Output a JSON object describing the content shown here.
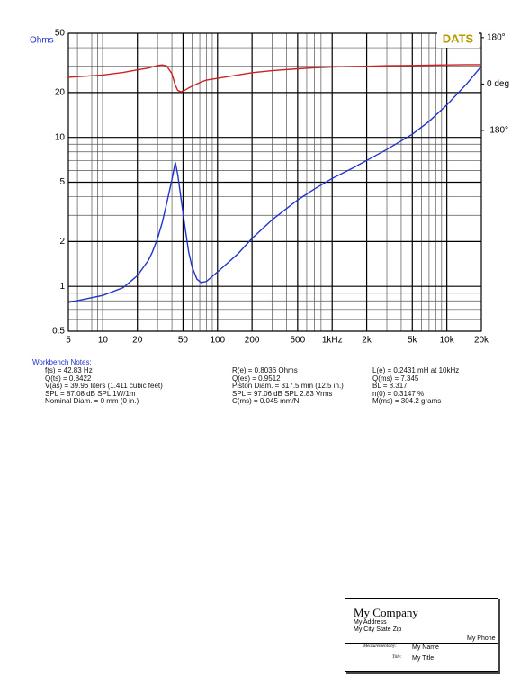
{
  "chart_data": {
    "type": "line",
    "y_label": "Ohms",
    "annotation": "DATS",
    "x": [
      5,
      10,
      15,
      20,
      25,
      27,
      30,
      33,
      36,
      40,
      42.83,
      45,
      48,
      52,
      56,
      60,
      66,
      72,
      80,
      100,
      150,
      200,
      300,
      500,
      700,
      1000,
      1500,
      2000,
      3000,
      5000,
      7000,
      10000,
      15000,
      20000
    ],
    "series": [
      {
        "color": "#2233cc",
        "values": [
          0.78,
          0.87,
          0.98,
          1.18,
          1.5,
          1.7,
          2.1,
          2.7,
          3.6,
          5.2,
          6.8,
          5.6,
          3.9,
          2.5,
          1.7,
          1.35,
          1.12,
          1.06,
          1.08,
          1.25,
          1.65,
          2.1,
          2.8,
          3.8,
          4.5,
          5.3,
          6.2,
          7.0,
          8.3,
          10.5,
          12.8,
          16.5,
          23,
          30
        ]
      },
      {
        "color": "#cc2222",
        "axis": "y2",
        "values": [
          26,
          35,
          45,
          55,
          62,
          66,
          72,
          74,
          70,
          40,
          -5,
          -25,
          -30,
          -24,
          -15,
          -8,
          0,
          8,
          15,
          22,
          35,
          44,
          52,
          59,
          63,
          66,
          68,
          69,
          71,
          72,
          73,
          74,
          75,
          75
        ]
      }
    ],
    "xlog": true,
    "ylog": true,
    "xlim": [
      5,
      20000
    ],
    "ylim": [
      0.5,
      50
    ],
    "y2lim": [
      -959,
      197
    ],
    "xticks": [
      5,
      10,
      20,
      50,
      100,
      200,
      500,
      {
        "value": 1000,
        "label": "1kHz"
      },
      {
        "value": 2000,
        "label": "2k"
      },
      {
        "value": 5000,
        "label": "5k"
      },
      {
        "value": 10000,
        "label": "10k"
      },
      {
        "value": 20000,
        "label": "20k"
      }
    ],
    "yticks": [
      0.5,
      1,
      2,
      5,
      10,
      20,
      50
    ],
    "y2ticks": [
      {
        "value": 180,
        "label": "180°"
      },
      {
        "value": 0,
        "label": "0 deg"
      },
      {
        "value": -180,
        "label": "-180°"
      }
    ],
    "x_minor_grid": [
      6,
      7,
      8,
      9,
      30,
      40,
      60,
      70,
      80,
      90,
      300,
      400,
      600,
      700,
      800,
      900,
      3000,
      4000,
      6000,
      7000,
      8000,
      9000
    ],
    "y_minor_grid": [
      0.6,
      0.7,
      0.8,
      0.9,
      3,
      4,
      6,
      7,
      8,
      9,
      30,
      40
    ],
    "grid": true
  },
  "notes": {
    "title": "Workbench Notes:",
    "columns": [
      [
        "f(s) = 42.83 Hz",
        "Q(ts) = 0.8422",
        "V(as) = 39.96 liters  (1.411 cubic feet)",
        "SPL = 87.08 dB SPL 1W/1m",
        "Nominal Diam. = 0 mm (0 in.)"
      ],
      [
        "R(e) = 0.8036 Ohms",
        "Q(es) = 0.9512",
        "Piston Diam. = 317.5 mm (12.5 in.)",
        "SPL = 97.06 dB SPL 2.83 Vrms",
        "C(ms) = 0.045 mm/N"
      ],
      [
        "L(e) = 0.2431 mH at 10kHz",
        "Q(ms) = 7.345",
        "BL = 8.317",
        "n(0) = 0.3147 %",
        "M(ms) = 304.2 grams"
      ]
    ]
  },
  "title_block": {
    "company": "My Company",
    "address": "My Address",
    "city": "My City State Zip",
    "phone": "My Phone",
    "measured_by_label": "Measurements by:",
    "name": "My Name",
    "title_label": "Title:",
    "title": "My Title"
  }
}
